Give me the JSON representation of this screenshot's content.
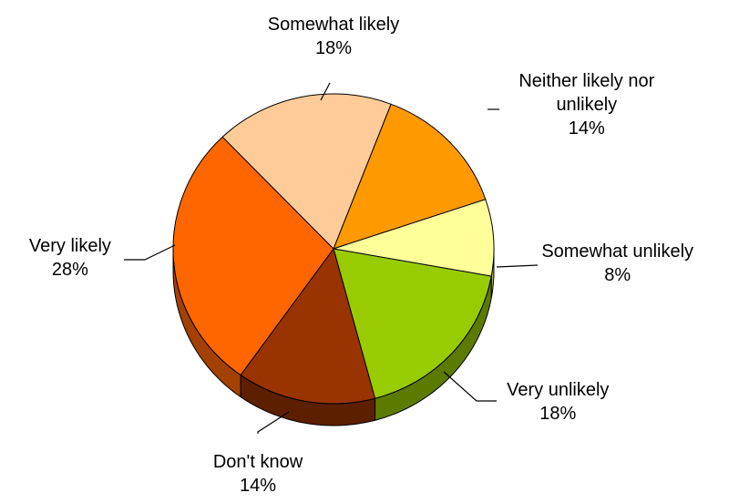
{
  "chart_data": {
    "type": "pie",
    "title": "",
    "legend": "none",
    "slices": [
      {
        "label": "Neither likely nor unlikely",
        "lines": [
          "Neither likely nor",
          "unlikely"
        ],
        "value": 14,
        "value_label": "14%",
        "color": "#FF9900",
        "side_color": "#B36B00"
      },
      {
        "label": "Somewhat unlikely",
        "lines": [
          "Somewhat unlikely"
        ],
        "value": 8,
        "value_label": "8%",
        "color": "#FFFF99",
        "side_color": "#B3B36B"
      },
      {
        "label": "Very unlikely",
        "lines": [
          "Very unlikely"
        ],
        "value": 18,
        "value_label": "18%",
        "color": "#99CC00",
        "side_color": "#5C7A00"
      },
      {
        "label": "Don't know",
        "lines": [
          "Don't know"
        ],
        "value": 14,
        "value_label": "14%",
        "color": "#993300",
        "side_color": "#5C1F00"
      },
      {
        "label": "Very likely",
        "lines": [
          "Very likely"
        ],
        "value": 28,
        "value_label": "28%",
        "color": "#FF6600",
        "side_color": "#A34100"
      },
      {
        "label": "Somewhat likely",
        "lines": [
          "Somewhat likely"
        ],
        "value": 18,
        "value_label": "18%",
        "color": "#FFCC99",
        "side_color": "#B38F6B"
      }
    ]
  }
}
